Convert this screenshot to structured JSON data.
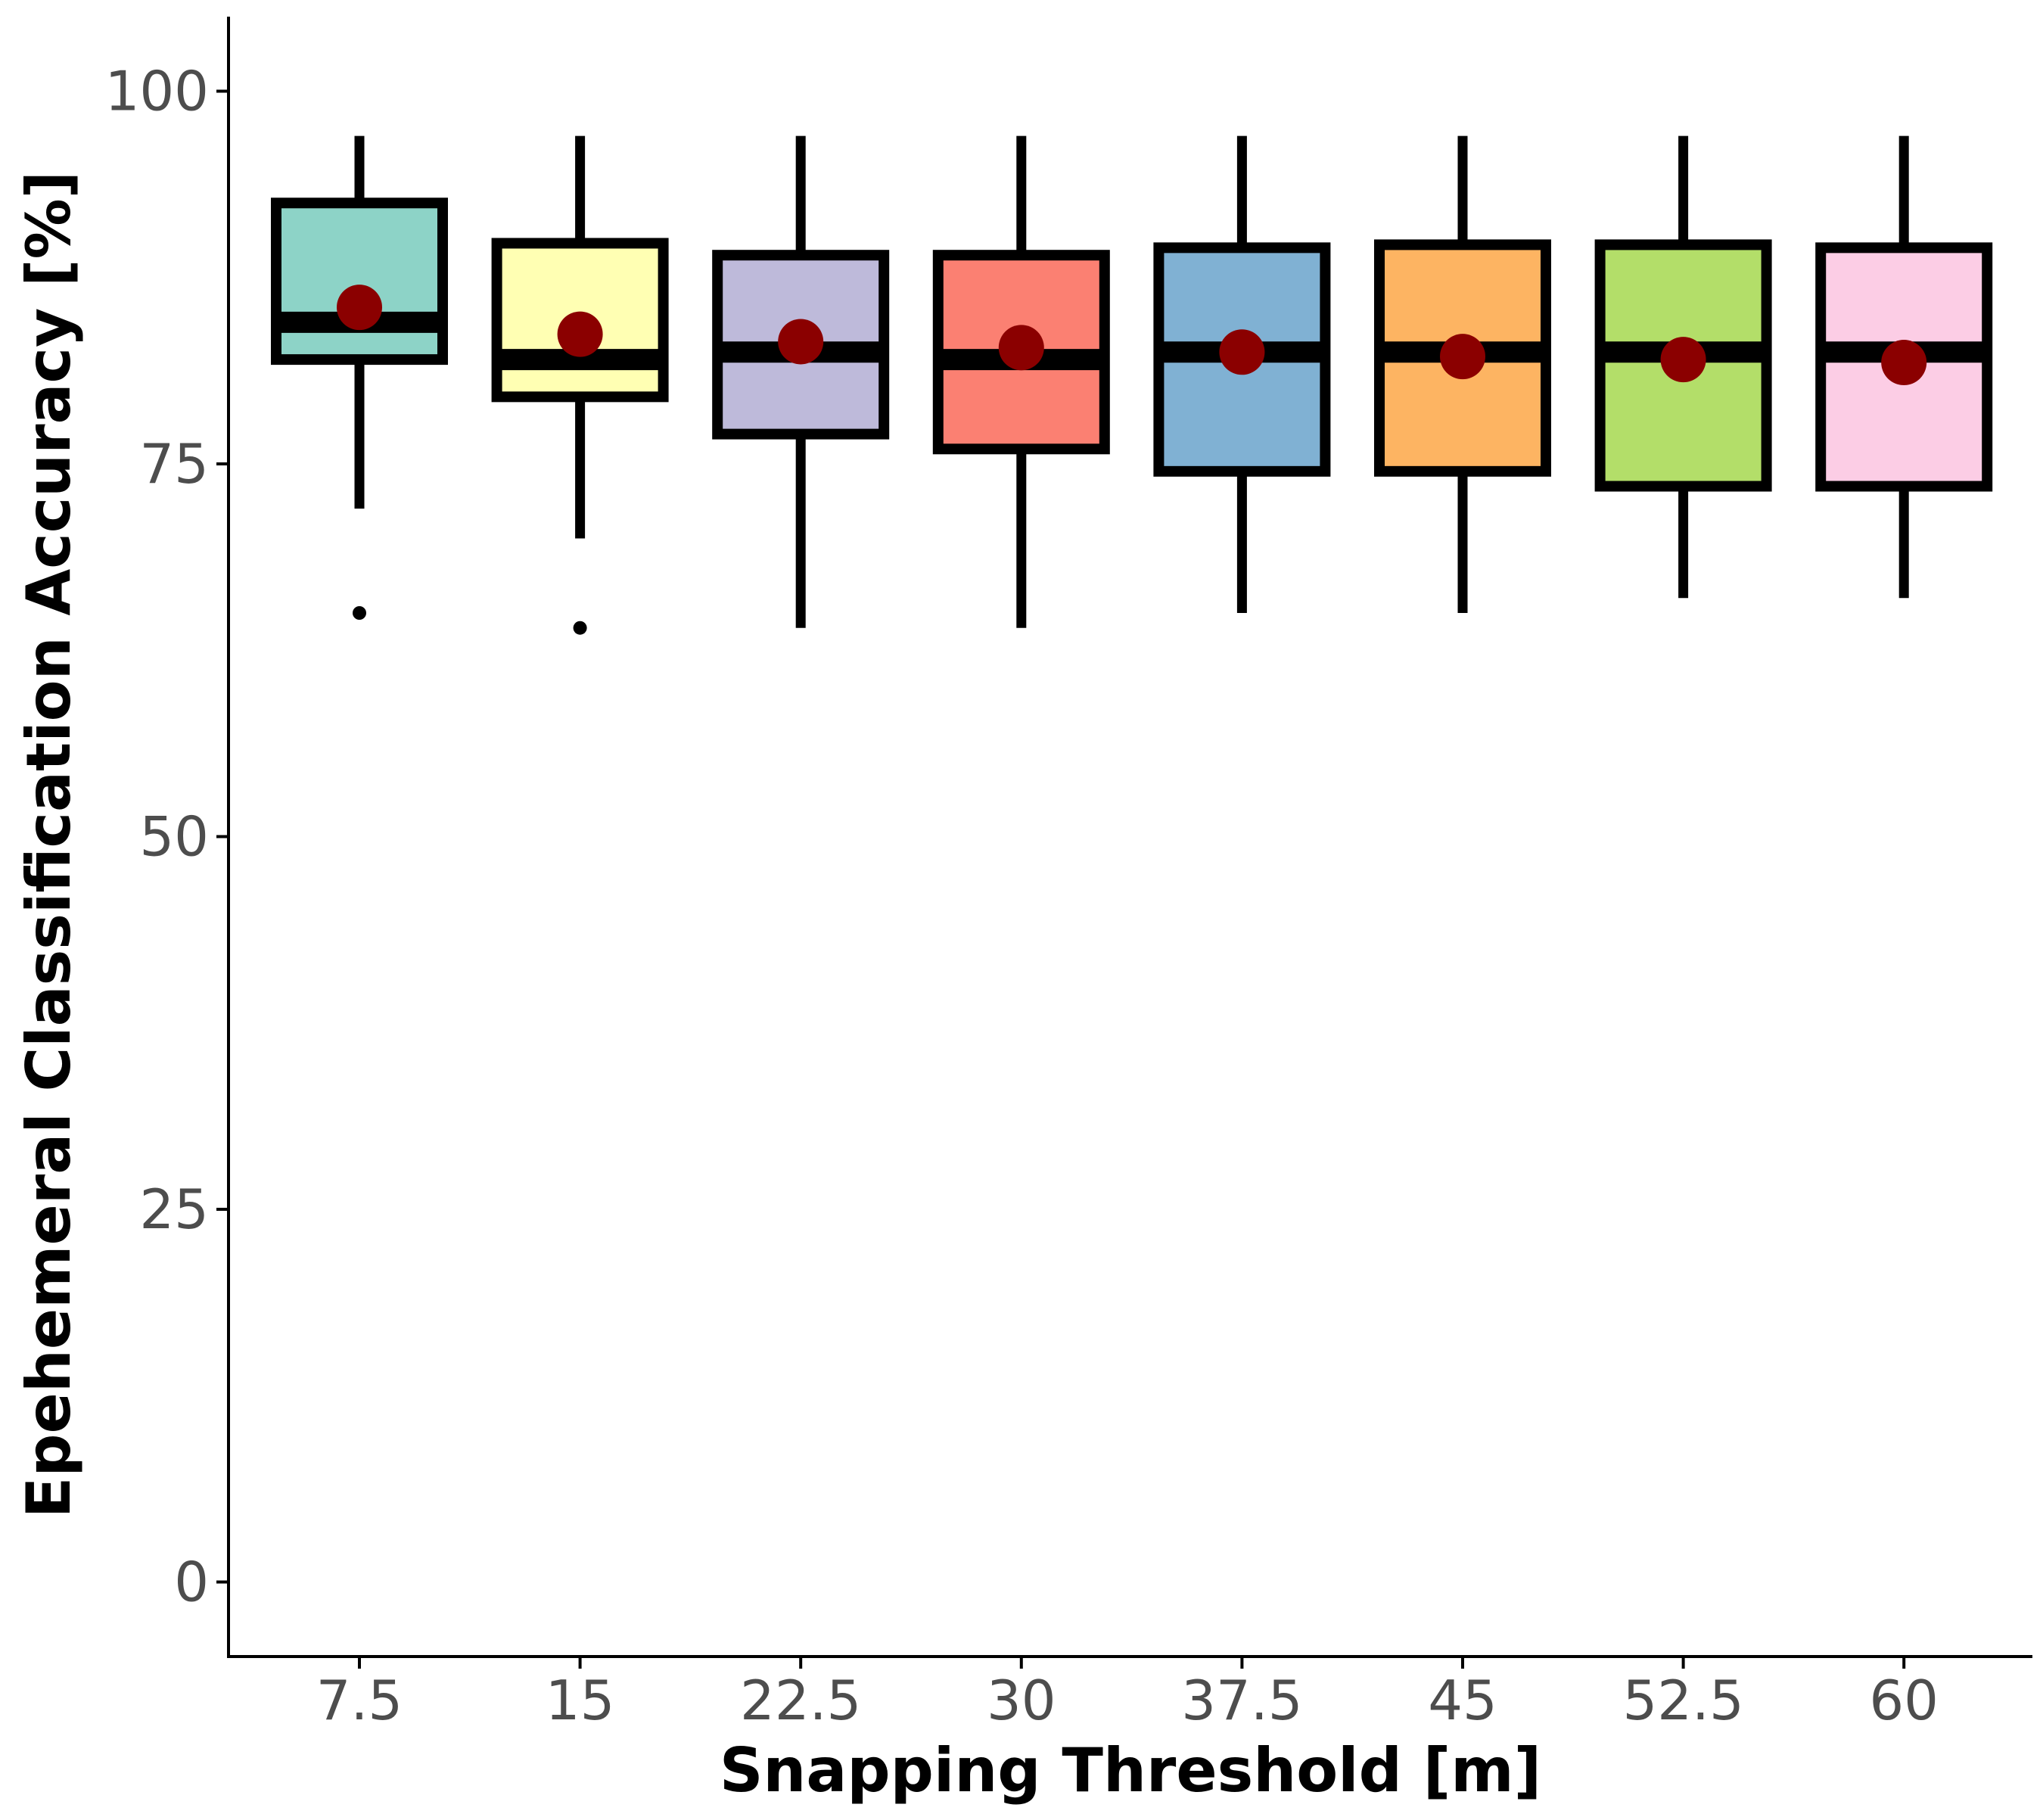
{
  "chart_data": {
    "type": "box",
    "xlabel": "Snapping Threshold [m]",
    "ylabel": "Epehemeral Classification Accuracy [%]",
    "ylim": [
      -5,
      105
    ],
    "yticks": [
      0,
      25,
      50,
      75,
      100
    ],
    "grid": false,
    "legend": "none",
    "mean_marker_color": "#8b0000",
    "categories": [
      "7.5",
      "15",
      "22.5",
      "30",
      "37.5",
      "45",
      "52.5",
      "60"
    ],
    "boxes": [
      {
        "x": "7.5",
        "fill": "#8dd3c7",
        "whisker_low": 72.0,
        "q1": 82.0,
        "median": 84.5,
        "q3": 92.5,
        "whisker_high": 97.0,
        "mean": 85.5,
        "outliers": [
          65.0
        ]
      },
      {
        "x": "15",
        "fill": "#ffffb3",
        "whisker_low": 70.0,
        "q1": 79.5,
        "median": 82.0,
        "q3": 89.8,
        "whisker_high": 97.0,
        "mean": 83.7,
        "outliers": [
          64.0
        ]
      },
      {
        "x": "22.5",
        "fill": "#bebada",
        "whisker_low": 64.0,
        "q1": 77.0,
        "median": 82.5,
        "q3": 89.0,
        "whisker_high": 97.0,
        "mean": 83.2,
        "outliers": []
      },
      {
        "x": "30",
        "fill": "#fb8072",
        "whisker_low": 64.0,
        "q1": 76.0,
        "median": 82.0,
        "q3": 89.0,
        "whisker_high": 97.0,
        "mean": 82.8,
        "outliers": []
      },
      {
        "x": "37.5",
        "fill": "#80b1d3",
        "whisker_low": 65.0,
        "q1": 74.5,
        "median": 82.5,
        "q3": 89.5,
        "whisker_high": 97.0,
        "mean": 82.5,
        "outliers": []
      },
      {
        "x": "45",
        "fill": "#fdb462",
        "whisker_low": 65.0,
        "q1": 74.5,
        "median": 82.5,
        "q3": 89.7,
        "whisker_high": 97.0,
        "mean": 82.2,
        "outliers": []
      },
      {
        "x": "52.5",
        "fill": "#b3de69",
        "whisker_low": 66.0,
        "q1": 73.5,
        "median": 82.5,
        "q3": 89.7,
        "whisker_high": 97.0,
        "mean": 82.0,
        "outliers": []
      },
      {
        "x": "60",
        "fill": "#fccde5",
        "whisker_low": 66.0,
        "q1": 73.5,
        "median": 82.5,
        "q3": 89.5,
        "whisker_high": 97.0,
        "mean": 81.8,
        "outliers": []
      }
    ]
  }
}
